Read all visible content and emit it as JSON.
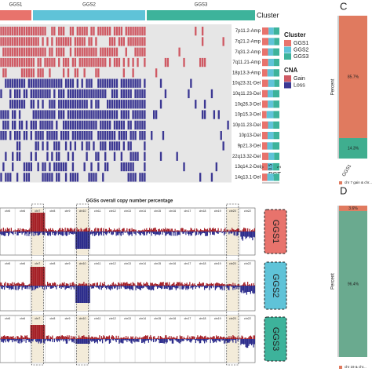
{
  "heatmap": {
    "clusters": [
      "GGS1",
      "GGS2",
      "GGS3"
    ],
    "cluster_label": "Cluster",
    "rows": [
      "7p11.2-Amp",
      "7q21.2-Amp",
      "7q31.2-Amp",
      "7q11.21-Amp",
      "18p13.3-Amp",
      "10q23.31-Del",
      "10q11.23-Del",
      "10q26.3-Del",
      "10p15.3-Del",
      "10p11.23-Del",
      "10p13-Del",
      "9p21.3-Del",
      "22q13.32-Del",
      "13q14.2-Del",
      "14q13.1-Del"
    ],
    "legend": {
      "cluster_title": "Cluster",
      "cluster_items": [
        "GGS1",
        "GGS2",
        "GGS3"
      ],
      "cna_title": "CNA",
      "cna_items": [
        "Gain",
        "Loss"
      ]
    },
    "pct_label": "PCT",
    "pct_ticks": [
      "0",
      "0.5",
      "1"
    ]
  },
  "profile": {
    "title": "GGSs overall copy number percentage",
    "chromosomes": [
      "chr5",
      "chr6",
      "chr7",
      "chr8",
      "chr9",
      "chr10",
      "chr11",
      "chr12",
      "chr13",
      "chr14",
      "chr15",
      "chr16",
      "chr17",
      "chr18",
      "chr19",
      "chr20",
      "chr22"
    ],
    "groups": [
      "GGS1",
      "GGS2",
      "GGS3"
    ]
  },
  "panel_c": {
    "letter": "C",
    "ylabel": "Percent",
    "category": "GGS1",
    "values": [
      85.7,
      14.3
    ],
    "value_labels": [
      "85.7%",
      "14.3%"
    ],
    "legend": "chr 7 gain & chr..."
  },
  "panel_d": {
    "letter": "D",
    "ylabel": "Percent",
    "values": [
      3.6,
      96.4
    ],
    "value_labels": [
      "3.6%",
      "96.4%"
    ],
    "legend": "chr 19 & chr..."
  }
}
